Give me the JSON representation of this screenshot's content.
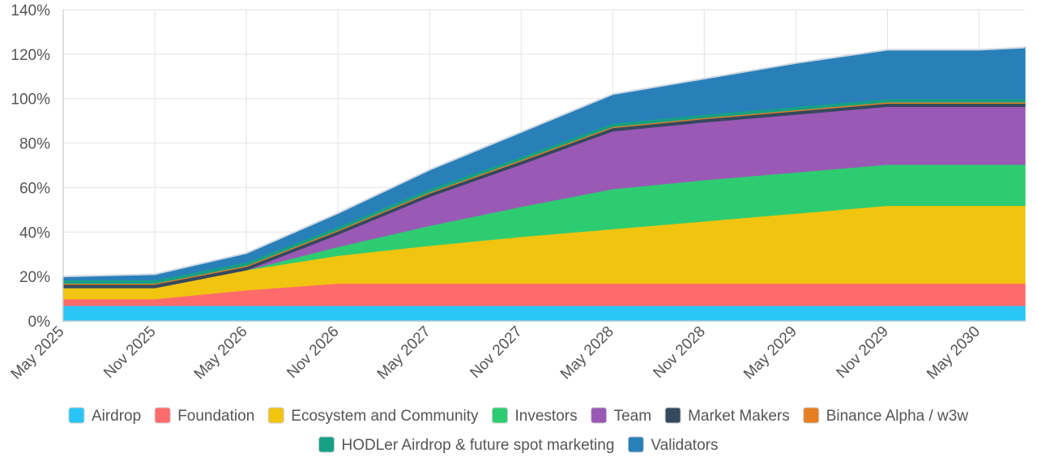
{
  "chart_data": {
    "type": "area",
    "stacked": true,
    "categories": [
      "May 2025",
      "Nov 2025",
      "May 2026",
      "Nov 2026",
      "May 2027",
      "Nov 2027",
      "May 2028",
      "Nov 2028",
      "May 2029",
      "Nov 2029",
      "May 2030"
    ],
    "x_values": [
      0,
      6,
      12,
      18,
      24,
      30,
      36,
      42,
      48,
      54,
      60,
      63
    ],
    "x_range": [
      0,
      63
    ],
    "ylim": [
      0,
      140
    ],
    "y_ticks": [
      0,
      20,
      40,
      60,
      80,
      100,
      120,
      140
    ],
    "y_tick_labels": [
      "0%",
      "20%",
      "40%",
      "60%",
      "80%",
      "100%",
      "120%",
      "140%"
    ],
    "grid": true,
    "legend_position": "bottom",
    "series": [
      {
        "name": "Airdrop",
        "color": "#29c5f6",
        "values": [
          7,
          7,
          7,
          7,
          7,
          7,
          7,
          7,
          7,
          7,
          7,
          7
        ]
      },
      {
        "name": "Foundation",
        "color": "#ff6b6b",
        "values": [
          3,
          3,
          7,
          10,
          10,
          10,
          10,
          10,
          10,
          10,
          10,
          10
        ]
      },
      {
        "name": "Ecosystem and Community",
        "color": "#f1c40f",
        "values": [
          5,
          5,
          9,
          12.5,
          17,
          21,
          24.5,
          28,
          31.5,
          35,
          35,
          35
        ]
      },
      {
        "name": "Investors",
        "color": "#2ecc71",
        "values": [
          0,
          0,
          0,
          4,
          9,
          13.5,
          18,
          18.5,
          18.5,
          18.5,
          18.5,
          18.5
        ]
      },
      {
        "name": "Team",
        "color": "#9b59b6",
        "values": [
          0,
          0,
          0,
          5.5,
          13,
          19,
          26,
          26,
          26,
          26,
          26,
          26
        ]
      },
      {
        "name": "Market Makers",
        "color": "#34495e",
        "values": [
          1.5,
          1.5,
          1.5,
          1.5,
          1.5,
          1.5,
          1.5,
          1.5,
          1.5,
          1.5,
          1.5,
          1.5
        ]
      },
      {
        "name": "Binance Alpha / w3w",
        "color": "#e67e22",
        "values": [
          0.5,
          0.5,
          0.5,
          0.5,
          0.5,
          0.5,
          0.5,
          0.5,
          0.5,
          0.5,
          0.5,
          0.5
        ]
      },
      {
        "name": "HODLer Airdrop & future spot marketing",
        "color": "#16a085",
        "values": [
          1.5,
          1.5,
          1.5,
          1.5,
          1.5,
          1.5,
          1.5,
          1.5,
          1.5,
          1.5,
          1.5,
          1.5
        ]
      },
      {
        "name": "Validators",
        "color": "#2980b9",
        "values": [
          1.5,
          2.5,
          4,
          6,
          8.5,
          11,
          13,
          16,
          19.5,
          22,
          22,
          23
        ]
      }
    ]
  }
}
